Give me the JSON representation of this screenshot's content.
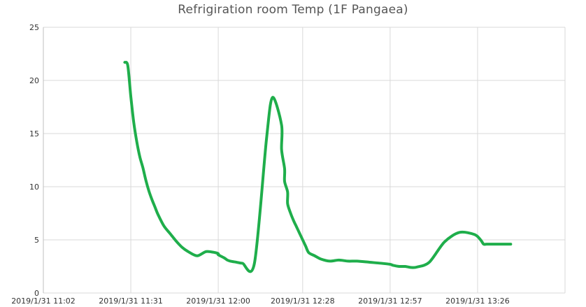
{
  "chart_data": {
    "type": "line",
    "title": "Refrigiration room Temp (1F Pangaea)",
    "xlabel": "",
    "ylabel": "",
    "x_tick_labels": [
      "2019/1/31 11:02",
      "2019/1/31 11:31",
      "2019/1/31 12:00",
      "2019/1/31 12:28",
      "2019/1/31 12:57",
      "2019/1/31 13:26"
    ],
    "y_ticks": [
      0,
      5,
      10,
      15,
      20,
      25
    ],
    "ylim": [
      0,
      25
    ],
    "x_range": [
      "2019/1/31 11:02",
      "2019/1/31 13:55"
    ],
    "grid": true,
    "legend": "none",
    "series": [
      {
        "color": "#1fae4b",
        "x": [
          "2019/1/31 11:29",
          "2019/1/31 11:30",
          "2019/1/31 11:31",
          "2019/1/31 11:32",
          "2019/1/31 11:33",
          "2019/1/31 11:34",
          "2019/1/31 11:35",
          "2019/1/31 11:36",
          "2019/1/31 11:37",
          "2019/1/31 11:38",
          "2019/1/31 11:39",
          "2019/1/31 11:40",
          "2019/1/31 11:42",
          "2019/1/31 11:44",
          "2019/1/31 11:46",
          "2019/1/31 11:48",
          "2019/1/31 11:50",
          "2019/1/31 11:53",
          "2019/1/31 11:56",
          "2019/1/31 11:59",
          "2019/1/31 12:00",
          "2019/1/31 12:00",
          "2019/1/31 12:02",
          "2019/1/31 12:03",
          "2019/1/31 12:04",
          "2019/1/31 12:06",
          "2019/1/31 12:08",
          "2019/1/31 12:12",
          "2019/1/31 12:16",
          "2019/1/31 12:18",
          "2019/1/31 12:21",
          "2019/1/31 12:21",
          "2019/1/31 12:22",
          "2019/1/31 12:22",
          "2019/1/31 12:23",
          "2019/1/31 12:23",
          "2019/1/31 12:24",
          "2019/1/31 12:25",
          "2019/1/31 12:26",
          "2019/1/31 12:27",
          "2019/1/31 12:28",
          "2019/1/31 12:29",
          "2019/1/31 12:30",
          "2019/1/31 12:32",
          "2019/1/31 12:34",
          "2019/1/31 12:37",
          "2019/1/31 12:40",
          "2019/1/31 12:43",
          "2019/1/31 12:46",
          "2019/1/31 12:50",
          "2019/1/31 12:54",
          "2019/1/31 12:57",
          "2019/1/31 12:58",
          "2019/1/31 13:00",
          "2019/1/31 13:02",
          "2019/1/31 13:04",
          "2019/1/31 13:06",
          "2019/1/31 13:10",
          "2019/1/31 13:15",
          "2019/1/31 13:20",
          "2019/1/31 13:25",
          "2019/1/31 13:27",
          "2019/1/31 13:28",
          "2019/1/31 13:29",
          "2019/1/31 13:30",
          "2019/1/31 13:31",
          "2019/1/31 13:33",
          "2019/1/31 13:35",
          "2019/1/31 13:37"
        ],
        "values": [
          21.7,
          21.4,
          18.5,
          16.0,
          14.2,
          12.8,
          11.8,
          10.6,
          9.6,
          8.8,
          8.1,
          7.4,
          6.3,
          5.6,
          4.9,
          4.3,
          3.9,
          3.5,
          3.9,
          3.8,
          3.7,
          3.6,
          3.3,
          3.1,
          3.0,
          2.9,
          2.8,
          2.8,
          14.5,
          18.4,
          15.8,
          13.5,
          11.7,
          10.5,
          9.5,
          8.4,
          7.5,
          6.8,
          6.2,
          5.6,
          5.0,
          4.4,
          3.8,
          3.5,
          3.2,
          3.0,
          3.1,
          3.0,
          3.0,
          2.9,
          2.8,
          2.7,
          2.6,
          2.5,
          2.5,
          2.4,
          2.45,
          2.9,
          4.8,
          5.7,
          5.5,
          5.0,
          4.6,
          4.6,
          4.6,
          4.6,
          4.6,
          4.6,
          4.6
        ]
      }
    ]
  }
}
